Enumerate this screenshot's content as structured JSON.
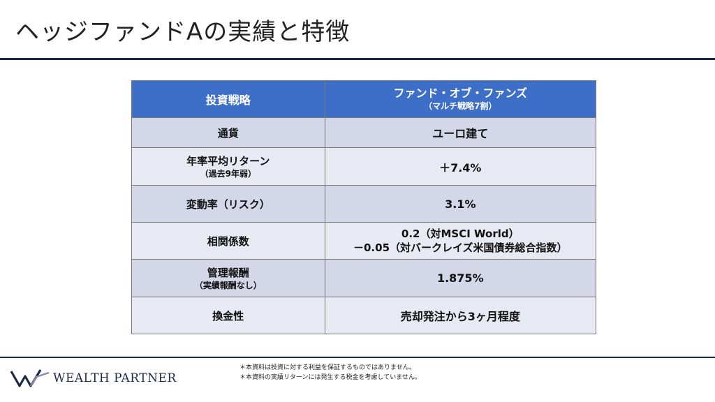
{
  "title": "ヘッジファンドAの実績と特徴",
  "table": {
    "header": {
      "label": "投資戦略",
      "value": "ファンド・オブ・ファンズ",
      "value_sub": "（マルチ戦略7割）"
    },
    "rows": [
      {
        "label": "通貨",
        "label_sub": "",
        "value": "ユーロ建て",
        "value2": ""
      },
      {
        "label": "年率平均リターン",
        "label_sub": "（過去9年弱）",
        "value": "＋7.4%",
        "value2": ""
      },
      {
        "label": "変動率（リスク）",
        "label_sub": "",
        "value": "3.1%",
        "value2": ""
      },
      {
        "label": "相関係数",
        "label_sub": "",
        "value": "0.2（対MSCI World）",
        "value2": "－0.05（対バークレイズ米国債券総合指数）"
      },
      {
        "label": "管理報酬",
        "label_sub": "（実績報酬なし）",
        "value": "1.875%",
        "value2": ""
      },
      {
        "label": "換金性",
        "label_sub": "",
        "value": "売却発注から3ヶ月程度",
        "value2": ""
      }
    ]
  },
  "footer": {
    "logo_text": "WEALTH PARTNER",
    "notes": [
      "＊本資料は投資に対する利益を保証するものではありません。",
      "＊本資料の実績リターンには発生する税金を考慮していません。"
    ]
  },
  "colors": {
    "header_bg": "#3d6fc9",
    "row_odd": "#d3d7e7",
    "row_even": "#e8eaf3",
    "navy": "#1c2a4a"
  }
}
